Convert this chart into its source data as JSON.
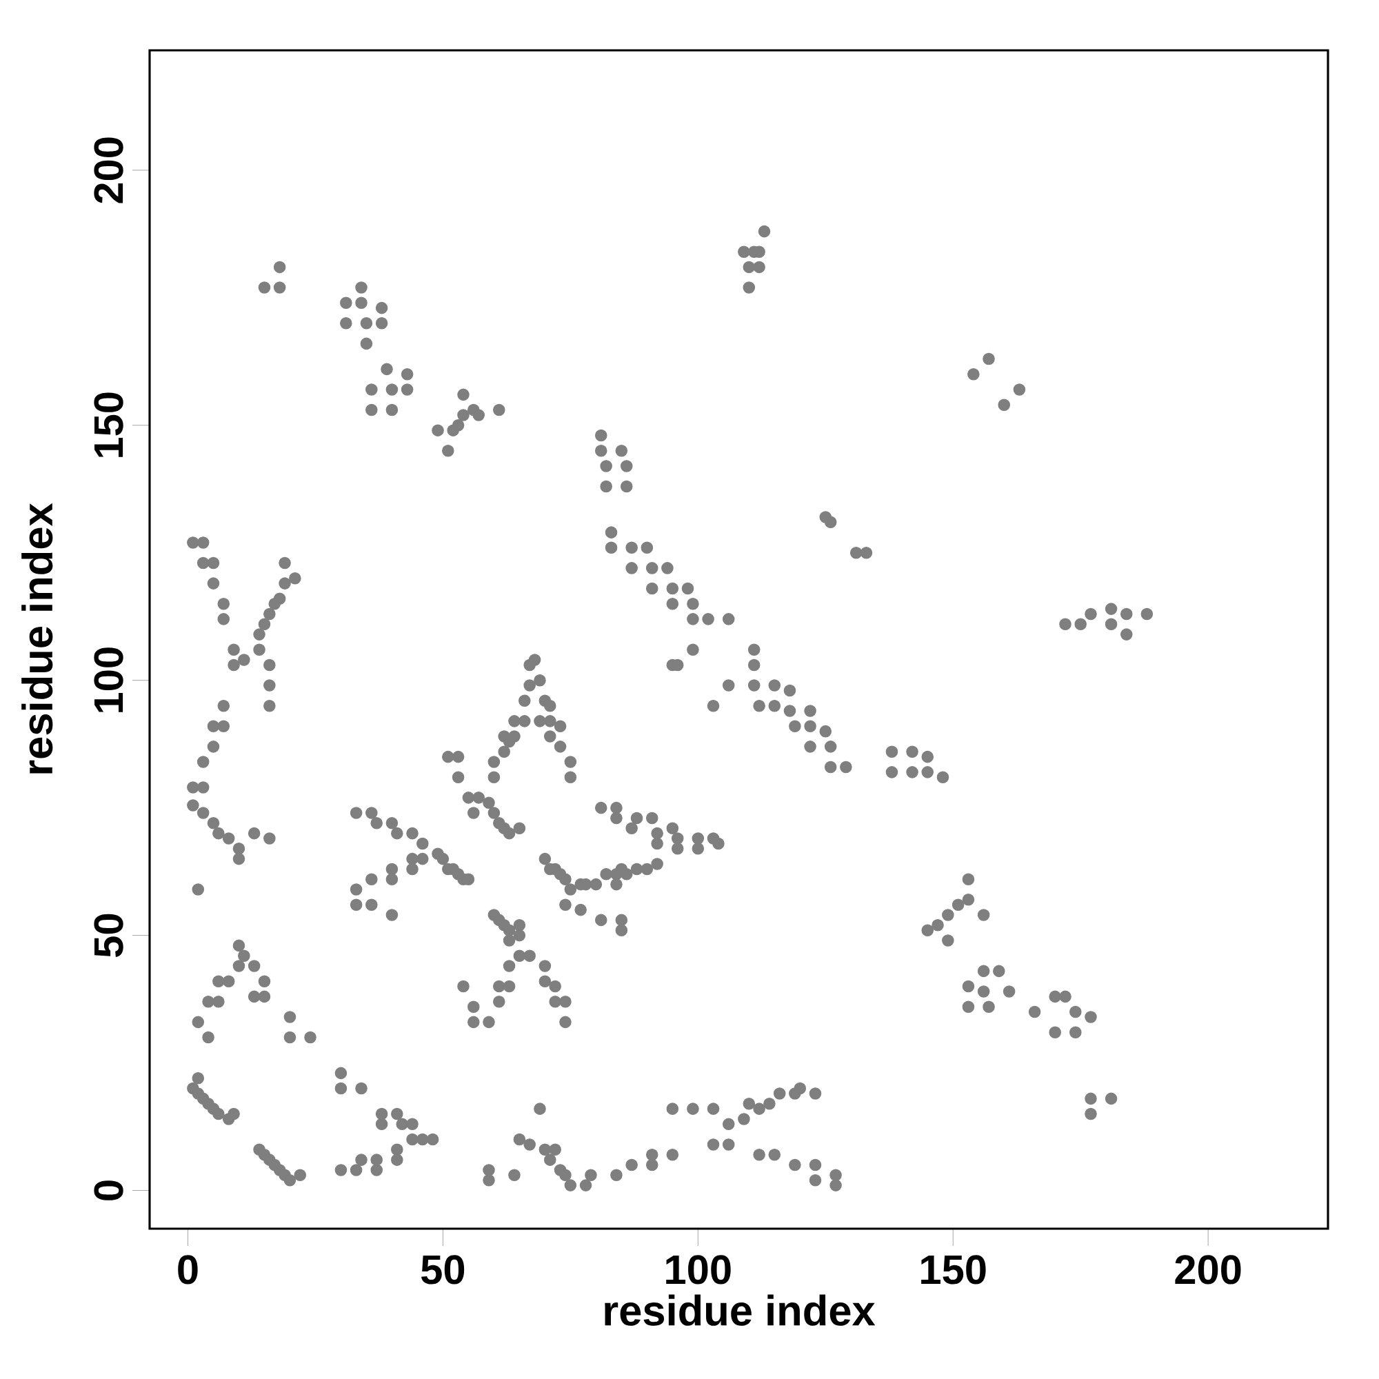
{
  "chart_data": {
    "type": "scatter",
    "xlabel": "residue index",
    "ylabel": "residue index",
    "xlim": [
      -7.5,
      223.5
    ],
    "ylim": [
      -7.5,
      223.5
    ],
    "xticks": [
      0,
      50,
      100,
      150,
      200
    ],
    "yticks": [
      0,
      50,
      100,
      150,
      200
    ],
    "marker": "circle",
    "grid": false,
    "series": [
      {
        "color": "#7f7f7f",
        "x": [
          1,
          3,
          5,
          6,
          8,
          10,
          1,
          3,
          10,
          13,
          16,
          2,
          3,
          5,
          5,
          7,
          7,
          9,
          9,
          11,
          7,
          7,
          5,
          1,
          3,
          3,
          5
        ],
        "values": [
          75.5,
          74,
          72,
          70,
          69,
          67,
          79,
          79,
          65,
          70,
          69,
          59,
          84,
          87,
          91,
          91,
          95,
          106,
          103,
          104,
          112,
          115,
          119,
          127,
          127,
          123,
          123
        ]
      },
      {
        "color": "#7f7f7f",
        "x": [
          14,
          15,
          16,
          17,
          18,
          19,
          19,
          21,
          16,
          16,
          16,
          14
        ],
        "values": [
          109,
          111,
          113,
          115,
          116,
          119,
          123,
          120,
          103,
          99,
          95,
          106
        ]
      },
      {
        "color": "#7f7f7f",
        "x": [
          15,
          18,
          18,
          31,
          31,
          34,
          34,
          35,
          35,
          38,
          38,
          36,
          36,
          39,
          40,
          40,
          43,
          43,
          49,
          51,
          52,
          53,
          54,
          54,
          56,
          57,
          61
        ],
        "values": [
          177,
          177,
          181,
          174,
          170,
          177,
          174,
          170,
          166,
          173,
          170,
          157,
          153,
          161,
          157,
          153,
          160,
          157,
          149,
          145,
          149,
          150,
          152,
          156,
          153,
          152,
          153
        ]
      },
      {
        "color": "#7f7f7f",
        "x": [
          81,
          81,
          82,
          82,
          85,
          86,
          86,
          83,
          83,
          87,
          87,
          90,
          91,
          91,
          94,
          95,
          95,
          98,
          99,
          99,
          102,
          106,
          99,
          95,
          96
        ],
        "values": [
          148,
          145,
          142,
          138,
          145,
          142,
          138,
          129,
          126,
          126,
          122,
          126,
          122,
          118,
          122,
          118,
          115,
          118,
          115,
          112,
          112,
          112,
          106,
          103,
          103
        ]
      },
      {
        "color": "#7f7f7f",
        "x": [
          111,
          111,
          111,
          112,
          115,
          115,
          118,
          118,
          119,
          122,
          122,
          122,
          125,
          126,
          126,
          129,
          103,
          106
        ],
        "values": [
          106,
          103,
          99,
          95,
          99,
          95,
          98,
          94,
          91,
          94,
          91,
          87,
          90,
          87,
          83,
          83,
          95,
          99
        ]
      },
      {
        "color": "#7f7f7f",
        "x": [
          109,
          110,
          110,
          111,
          112,
          113,
          112,
          125,
          126,
          131,
          133,
          154,
          157,
          160,
          163
        ],
        "values": [
          184,
          181,
          177,
          184,
          181,
          188,
          184,
          132,
          131,
          125,
          125,
          160,
          163,
          154,
          157
        ]
      },
      {
        "color": "#7f7f7f",
        "x": [
          138,
          138,
          142,
          142,
          145,
          145,
          148,
          172,
          175,
          177,
          181,
          181,
          184,
          184,
          188
        ],
        "values": [
          86,
          82,
          86,
          82,
          85,
          82,
          81,
          111,
          111,
          113,
          111,
          114,
          113,
          109,
          113
        ]
      },
      {
        "color": "#7f7f7f",
        "x": [
          145,
          147,
          149,
          149,
          151,
          153,
          153,
          156,
          153,
          153,
          156,
          156,
          157,
          159,
          161,
          166,
          170,
          170,
          172,
          174,
          174,
          177,
          177,
          177,
          181
        ],
        "values": [
          51,
          52,
          49,
          54,
          56,
          57,
          61,
          54,
          40,
          36,
          43,
          39,
          36,
          43,
          39,
          35,
          38,
          31,
          38,
          35,
          31,
          34,
          18,
          15,
          18
        ]
      },
      {
        "color": "#7f7f7f",
        "x": [
          64,
          65,
          67,
          69,
          70,
          71,
          72,
          73,
          74,
          75,
          78,
          79,
          84,
          87,
          91,
          91,
          95,
          95,
          99,
          103,
          103,
          106,
          106,
          109,
          110,
          112,
          114,
          116,
          119,
          120,
          123,
          112,
          115,
          119,
          123,
          123,
          127,
          127
        ],
        "values": [
          3,
          10,
          9,
          16,
          8,
          6,
          8,
          4,
          3,
          1,
          1,
          3,
          3,
          5,
          5,
          7,
          7,
          16,
          16,
          16,
          9,
          9,
          13,
          14,
          17,
          16,
          17,
          19,
          19,
          20,
          19,
          7,
          7,
          5,
          5,
          2,
          3,
          1
        ]
      },
      {
        "color": "#7f7f7f",
        "x": [
          2,
          4,
          4,
          6,
          6,
          8,
          10,
          10,
          11,
          13,
          13,
          15,
          15,
          20,
          20,
          24,
          30,
          33,
          34,
          37,
          37,
          34,
          38,
          38,
          41,
          41,
          41,
          42,
          44,
          44,
          46,
          48,
          59,
          59
        ],
        "values": [
          33,
          30,
          37,
          37,
          41,
          41,
          44,
          48,
          46,
          44,
          38,
          41,
          38,
          34,
          30,
          30,
          4,
          4,
          6,
          4,
          6,
          20,
          15,
          13,
          15,
          8,
          6,
          13,
          13,
          10,
          10,
          10,
          2,
          4
        ]
      },
      {
        "color": "#7f7f7f",
        "x": [
          1,
          2,
          3,
          4,
          5,
          6,
          8,
          9,
          2,
          14,
          15,
          16,
          17,
          18,
          19,
          20,
          22,
          30,
          30
        ],
        "values": [
          20,
          19,
          18,
          17,
          16,
          15,
          14,
          15,
          22,
          8,
          7,
          6,
          5,
          4,
          3,
          2,
          3,
          20,
          23
        ]
      },
      {
        "color": "#7f7f7f",
        "x": [
          33,
          36,
          37,
          40,
          41,
          44,
          46,
          44,
          44,
          46,
          40,
          40,
          36,
          33,
          33,
          36,
          40,
          49,
          50,
          51,
          52,
          53,
          54,
          55,
          51,
          53,
          53
        ],
        "values": [
          74,
          74,
          72,
          72,
          70,
          70,
          68,
          65,
          63,
          65,
          63,
          61,
          61,
          59,
          56,
          56,
          54,
          66,
          65,
          63,
          63,
          62,
          61,
          61,
          85,
          85,
          81
        ]
      },
      {
        "color": "#7f7f7f",
        "x": [
          55,
          57,
          59,
          60,
          61,
          62,
          63,
          65,
          56,
          60,
          60,
          62,
          62,
          63,
          64,
          64,
          66,
          66,
          67,
          67,
          68,
          69,
          70,
          71,
          71,
          73,
          71,
          73,
          75,
          75,
          69
        ],
        "values": [
          77,
          77,
          76,
          74,
          72,
          71,
          70,
          71,
          74,
          81,
          84,
          86,
          89,
          88,
          92,
          89,
          92,
          96,
          99,
          103,
          104,
          100,
          96,
          95,
          92,
          91,
          89,
          87,
          84,
          81,
          92
        ]
      },
      {
        "color": "#7f7f7f",
        "x": [
          60,
          61,
          62,
          63,
          65,
          65,
          63,
          65,
          63,
          67,
          70,
          70,
          72,
          72,
          74,
          74,
          54,
          56,
          56,
          59,
          61,
          61,
          63
        ],
        "values": [
          54,
          53,
          52,
          51,
          50,
          52,
          49,
          46,
          44,
          46,
          44,
          41,
          40,
          37,
          37,
          33,
          40,
          36,
          33,
          33,
          37,
          40,
          40
        ]
      },
      {
        "color": "#7f7f7f",
        "x": [
          70,
          71,
          72,
          73,
          74,
          75,
          77,
          78,
          80,
          82,
          84,
          85,
          86,
          88,
          90,
          92,
          92,
          92,
          91,
          88,
          87,
          84,
          81,
          84,
          95,
          96,
          96,
          100,
          100,
          103,
          104,
          77,
          74,
          81,
          85,
          85,
          84
        ],
        "values": [
          65,
          63,
          63,
          62,
          61,
          59,
          60,
          60,
          60,
          62,
          62,
          63,
          62,
          63,
          63,
          64,
          68,
          70,
          73,
          73,
          71,
          75,
          75,
          73,
          71,
          67,
          69,
          69,
          67,
          69,
          68,
          55,
          56,
          53,
          53,
          51,
          60
        ]
      }
    ]
  }
}
